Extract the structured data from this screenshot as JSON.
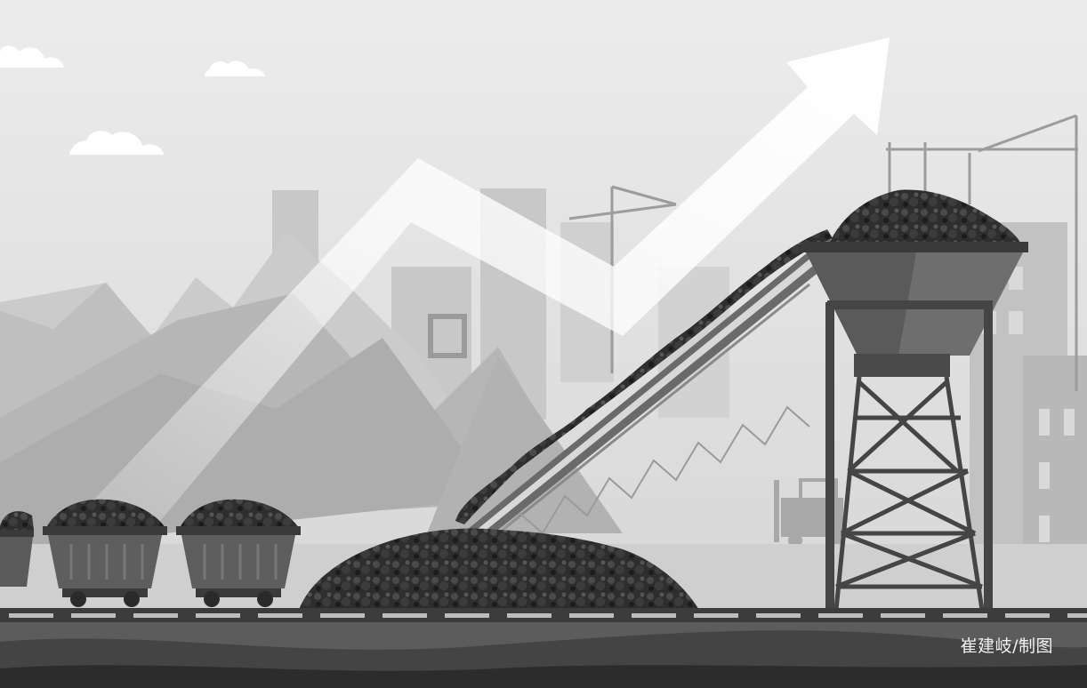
{
  "illustration": {
    "subject": "coal-production-growth",
    "palette": {
      "sky": "#e6e6e6",
      "sky_low": "#d2d2d2",
      "mountain": "#c4c4c4",
      "building": "#bdbdbd",
      "coal": "#2b2b2b",
      "steel": "#474747",
      "arrow": "#ffffff",
      "ground": "#3a3a3a"
    }
  },
  "credit": {
    "text": "崔建岐/制图"
  }
}
